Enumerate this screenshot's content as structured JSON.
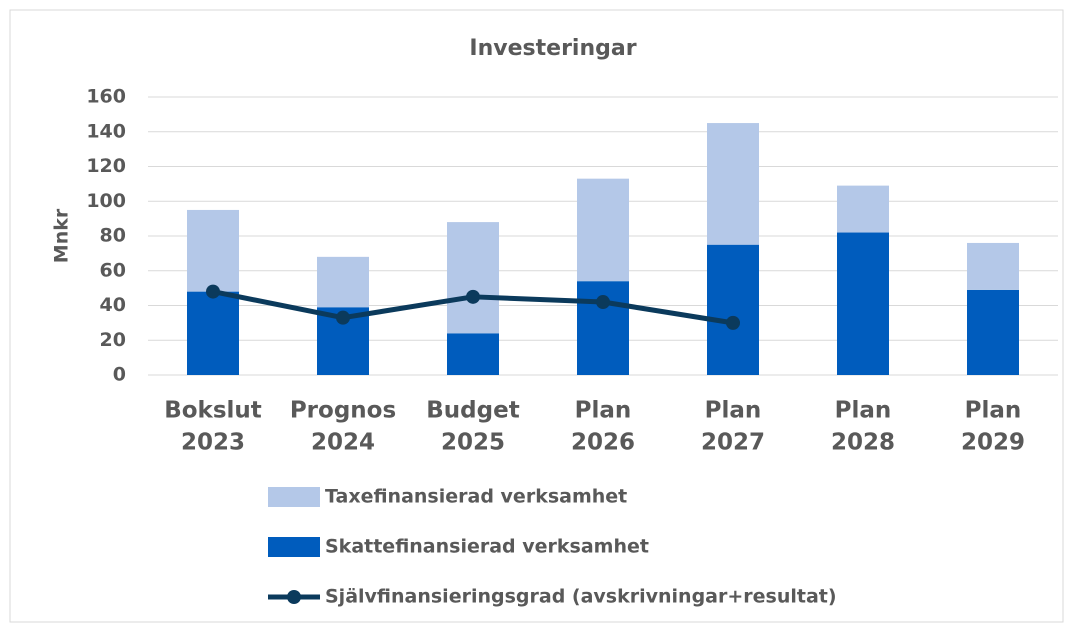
{
  "chart_data": {
    "type": "stacked_bar_line",
    "title": "Investeringar",
    "y_label": "Mnkr",
    "categories": [
      [
        "Bokslut",
        "2023"
      ],
      [
        "Prognos",
        "2024"
      ],
      [
        "Budget",
        "2025"
      ],
      [
        "Plan",
        "2026"
      ],
      [
        "Plan",
        "2027"
      ],
      [
        "Plan",
        "2028"
      ],
      [
        "Plan",
        "2029"
      ]
    ],
    "series": [
      {
        "name": "Skattefinansierad verksamhet",
        "kind": "bar",
        "color": "#005cbd",
        "values": [
          48,
          39,
          24,
          54,
          75,
          82,
          49
        ]
      },
      {
        "name": "Taxefinansierad verksamhet",
        "kind": "bar",
        "color": "#b4c8e8",
        "values": [
          47,
          29,
          64,
          59,
          70,
          27,
          27
        ]
      },
      {
        "name": "Självfinansieringsgrad (avskrivningar+resultat)",
        "kind": "line",
        "color": "#0b3a5c",
        "values": [
          48,
          33,
          45,
          42,
          30,
          null,
          null
        ]
      }
    ],
    "legend_order": [
      1,
      0,
      2
    ],
    "ylim": [
      0,
      160
    ],
    "yticks": [
      0,
      20,
      40,
      60,
      80,
      100,
      120,
      140,
      160
    ],
    "grid": true
  }
}
